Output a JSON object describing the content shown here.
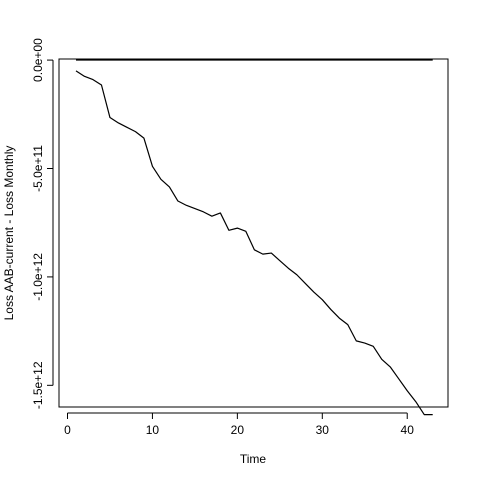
{
  "chart_data": {
    "type": "line",
    "title": "",
    "xlabel": "Time",
    "ylabel": "Loss AAB-current - Loss Monthly",
    "xlim": [
      -1,
      44.8
    ],
    "ylim": [
      -1600000000000.0,
      5000000000.0
    ],
    "x_ticks": [
      0,
      10,
      20,
      30,
      40
    ],
    "x_tick_labels": [
      "0",
      "10",
      "20",
      "30",
      "40"
    ],
    "y_ticks": [
      0,
      -500000000000.0,
      -1000000000000.0,
      -1500000000000.0
    ],
    "y_tick_labels": [
      "0.0e+00",
      "-5.0e+11",
      "-1.0e+12",
      "-1.5e+12"
    ],
    "grid": false,
    "series": [
      {
        "x": [
          1,
          43
        ],
        "y": [
          0,
          0
        ]
      },
      {
        "x": [
          1,
          2,
          3,
          4,
          5,
          6,
          7,
          8,
          9,
          10,
          11,
          12,
          13,
          14,
          15,
          16,
          17,
          18,
          19,
          20,
          21,
          22,
          23,
          24,
          25,
          26,
          27,
          28,
          29,
          30,
          31,
          32,
          33,
          34,
          35,
          36,
          37,
          38,
          39,
          40,
          41,
          42,
          43
        ],
        "y": [
          -50000000000.0,
          -75000000000.0,
          -90000000000.0,
          -115000000000.0,
          -265000000000.0,
          -290000000000.0,
          -310000000000.0,
          -330000000000.0,
          -360000000000.0,
          -490000000000.0,
          -550000000000.0,
          -585000000000.0,
          -650000000000.0,
          -670000000000.0,
          -685000000000.0,
          -700000000000.0,
          -720000000000.0,
          -705000000000.0,
          -785000000000.0,
          -775000000000.0,
          -790000000000.0,
          -875000000000.0,
          -895000000000.0,
          -890000000000.0,
          -925000000000.0,
          -960000000000.0,
          -990000000000.0,
          -1030000000000.0,
          -1070000000000.0,
          -1105000000000.0,
          -1150000000000.0,
          -1190000000000.0,
          -1220000000000.0,
          -1295000000000.0,
          -1305000000000.0,
          -1320000000000.0,
          -1380000000000.0,
          -1415000000000.0,
          -1470000000000.0,
          -1525000000000.0,
          -1575000000000.0,
          -1635000000000.0,
          -1635000000000.0
        ]
      }
    ]
  }
}
